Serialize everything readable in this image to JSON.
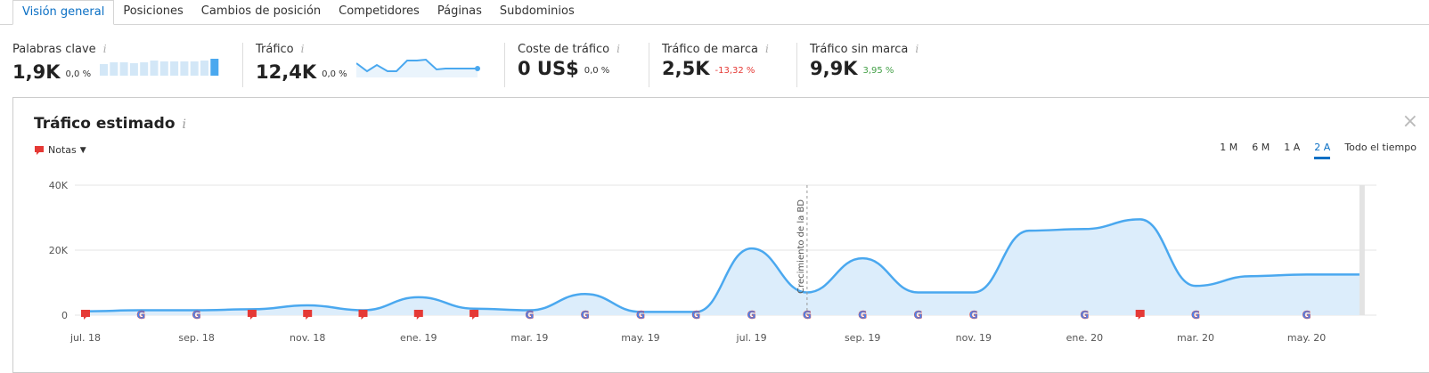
{
  "tabs": [
    "Visión general",
    "Posiciones",
    "Cambios de posición",
    "Competidores",
    "Páginas",
    "Subdominios"
  ],
  "metrics": [
    {
      "label": "Palabras clave",
      "value": "1,9K",
      "change": "0,0 %",
      "change_color": "#333333"
    },
    {
      "label": "Tráfico",
      "value": "12,4K",
      "change": "0,0 %",
      "change_color": "#333333"
    },
    {
      "label": "Coste de tráfico",
      "value": "0 US$",
      "change": "0,0 %",
      "change_color": "#333333"
    },
    {
      "label": "Tráfico de marca",
      "value": "2,5K",
      "change": "-13,32 %",
      "change_color": "#e53935"
    },
    {
      "label": "Tráfico sin marca",
      "value": "9,9K",
      "change": "3,95 %",
      "change_color": "#43a047"
    }
  ],
  "info_glyph": "i",
  "panel": {
    "title": "Tráfico estimado",
    "notes_label": "Notas",
    "ranges": [
      "1 M",
      "6 M",
      "1 A",
      "2 A",
      "Todo el tiempo"
    ],
    "active_range": "2 A",
    "close": "×"
  },
  "colors": {
    "accent": "#0a6fc4",
    "line": "#4aa8ef",
    "fill": "#dcedfb",
    "note": "#e53935"
  },
  "chart_data": {
    "type": "area",
    "x": [
      "2018-07",
      "2018-08",
      "2018-09",
      "2018-10",
      "2018-11",
      "2018-12",
      "2019-01",
      "2019-02",
      "2019-03",
      "2019-04",
      "2019-05",
      "2019-06",
      "2019-07",
      "2019-08",
      "2019-09",
      "2019-10",
      "2019-11",
      "2019-12",
      "2020-01",
      "2020-02",
      "2020-03",
      "2020-04",
      "2020-05",
      "2020-06"
    ],
    "values": [
      1200,
      1500,
      1500,
      1800,
      3000,
      1500,
      5500,
      2000,
      1500,
      6500,
      1000,
      1000,
      20500,
      7000,
      17500,
      7000,
      7000,
      26000,
      26500,
      29500,
      9000,
      12000,
      12500,
      12500
    ],
    "ylim": [
      0,
      40000
    ],
    "yticks": [
      "0",
      "20K",
      "40K"
    ],
    "xtick_labels": [
      "jul. 18",
      "sep. 18",
      "nov. 18",
      "ene. 19",
      "mar. 19",
      "may. 19",
      "jul. 19",
      "sep. 19",
      "nov. 19",
      "ene. 20",
      "mar. 20",
      "may. 20"
    ],
    "annotation": {
      "x": "2019-08",
      "text": "Crecimiento de la BD"
    },
    "note_markers": [
      "2018-07",
      "2018-10",
      "2018-11",
      "2018-12",
      "2019-01",
      "2019-02",
      "2020-02"
    ],
    "google_markers": [
      "2018-08",
      "2018-09",
      "2019-03",
      "2019-04",
      "2019-05",
      "2019-06",
      "2019-07",
      "2019-08",
      "2019-09",
      "2019-10",
      "2019-11",
      "2020-01",
      "2020-03",
      "2020-05"
    ],
    "grid": true
  }
}
